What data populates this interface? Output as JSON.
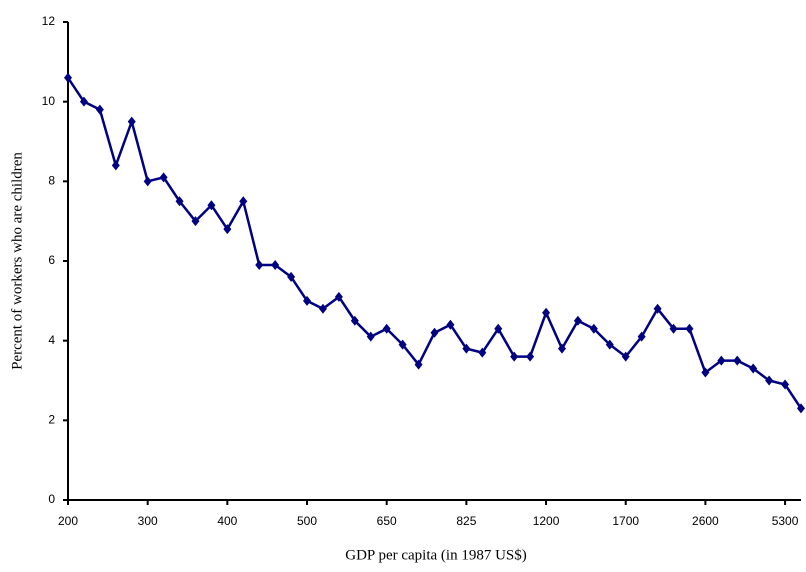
{
  "chart_data": {
    "type": "line",
    "x_label": "GDP per capita (in 1987 US$)",
    "y_label": "Percent of workers who are children",
    "categories": [
      "200",
      null,
      null,
      null,
      null,
      "300",
      null,
      null,
      null,
      null,
      "400",
      null,
      null,
      null,
      null,
      "500",
      null,
      null,
      null,
      null,
      "650",
      null,
      null,
      null,
      null,
      "825",
      null,
      null,
      null,
      null,
      "1200",
      null,
      null,
      null,
      null,
      "1700",
      null,
      null,
      null,
      null,
      "2600",
      null,
      null,
      null,
      null,
      "5300",
      null
    ],
    "series": [
      {
        "color": "#000080",
        "values": [
          10.6,
          10.0,
          9.8,
          8.4,
          9.5,
          8.0,
          8.1,
          7.5,
          7.0,
          7.4,
          6.8,
          7.5,
          5.9,
          5.9,
          5.6,
          5.0,
          4.8,
          5.1,
          4.5,
          4.1,
          4.3,
          3.9,
          3.4,
          4.2,
          4.4,
          3.8,
          3.7,
          4.3,
          3.6,
          3.6,
          4.7,
          3.8,
          4.5,
          4.3,
          3.9,
          3.6,
          4.1,
          4.8,
          4.3,
          4.3,
          3.2,
          3.5,
          3.5,
          3.3,
          3.0,
          2.9,
          2.3
        ]
      }
    ],
    "ylim": [
      0,
      12
    ],
    "yticks": [
      0,
      2,
      4,
      6,
      8,
      10,
      12
    ],
    "grid": false
  }
}
